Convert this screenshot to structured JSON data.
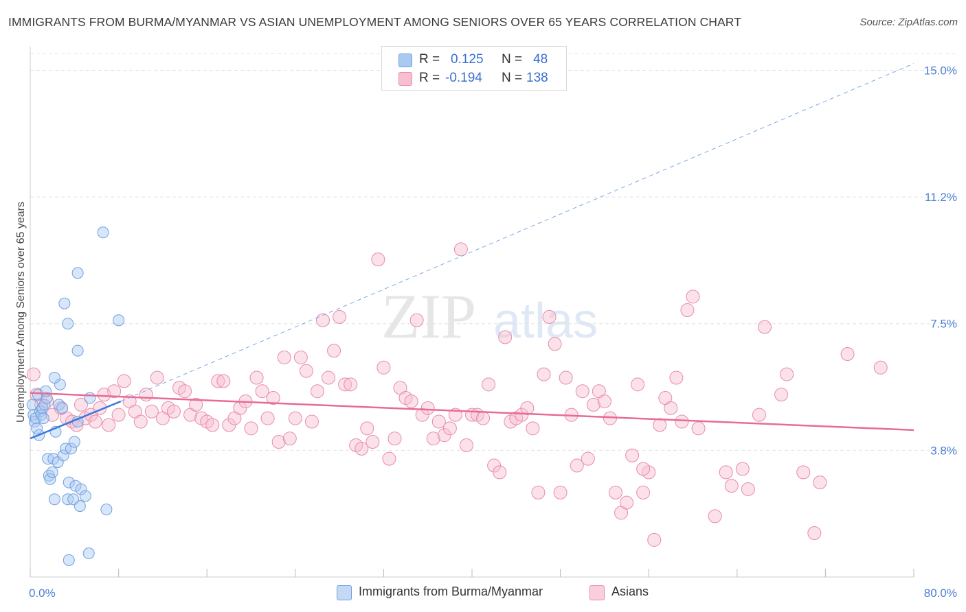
{
  "title": "IMMIGRANTS FROM BURMA/MYANMAR VS ASIAN UNEMPLOYMENT AMONG SENIORS OVER 65 YEARS CORRELATION CHART",
  "source": "Source: ZipAtlas.com",
  "watermark": {
    "zip": "ZIP",
    "atlas": "atlas"
  },
  "legend": {
    "r_label": "R =",
    "n_label": "N =",
    "rows": [
      {
        "r": "0.125",
        "n": "48",
        "color": "#a9c8f2",
        "border": "#6f9fe0"
      },
      {
        "r": "-0.194",
        "n": "138",
        "color": "#f7bfd0",
        "border": "#e98aa8"
      }
    ]
  },
  "bottom_legend": [
    {
      "label": "Immigrants from Burma/Myanmar",
      "color": "#c5d9f5",
      "border": "#6f9fe0"
    },
    {
      "label": "Asians",
      "color": "#f9cfdc",
      "border": "#e98aa8"
    }
  ],
  "chart_data": {
    "type": "scatter",
    "ylabel": "Unemployment Among Seniors over 65 years",
    "xlim": [
      0,
      80
    ],
    "ylim": [
      0,
      15.7
    ],
    "x_tick_labels": [
      {
        "v": 0,
        "label": "0.0%"
      },
      {
        "v": 80,
        "label": "80.0%"
      }
    ],
    "y_tick_labels": [
      {
        "v": 3.75,
        "label": "3.8%"
      },
      {
        "v": 7.5,
        "label": "7.5%"
      },
      {
        "v": 11.25,
        "label": "11.2%"
      },
      {
        "v": 15.0,
        "label": "15.0%"
      }
    ],
    "x_minor_ticks": [
      0,
      8,
      16,
      24,
      32,
      40,
      48,
      56,
      64,
      72,
      80
    ],
    "series": [
      {
        "name": "Immigrants from Burma/Myanmar",
        "color": "#6f9fe0",
        "fill": "rgba(169,200,242,0.45)",
        "points": [
          [
            0.2,
            5.1
          ],
          [
            0.3,
            4.8
          ],
          [
            0.4,
            4.6
          ],
          [
            0.5,
            4.7
          ],
          [
            0.6,
            4.4
          ],
          [
            0.7,
            5.4
          ],
          [
            0.8,
            4.2
          ],
          [
            0.9,
            4.9
          ],
          [
            1.0,
            4.8
          ],
          [
            1.1,
            5.0
          ],
          [
            1.3,
            5.1
          ],
          [
            1.5,
            5.3
          ],
          [
            1.2,
            4.7
          ],
          [
            1.4,
            5.5
          ],
          [
            1.6,
            3.5
          ],
          [
            1.7,
            3.0
          ],
          [
            1.8,
            2.9
          ],
          [
            2.0,
            3.1
          ],
          [
            2.1,
            3.5
          ],
          [
            2.2,
            2.3
          ],
          [
            2.3,
            4.3
          ],
          [
            2.5,
            3.4
          ],
          [
            2.6,
            5.1
          ],
          [
            2.7,
            5.7
          ],
          [
            2.9,
            5.0
          ],
          [
            2.2,
            5.9
          ],
          [
            3.0,
            3.6
          ],
          [
            3.2,
            3.8
          ],
          [
            3.4,
            2.3
          ],
          [
            3.5,
            2.8
          ],
          [
            3.7,
            3.8
          ],
          [
            3.9,
            2.3
          ],
          [
            4.0,
            4.0
          ],
          [
            4.1,
            2.7
          ],
          [
            4.3,
            4.6
          ],
          [
            4.5,
            2.1
          ],
          [
            4.6,
            2.6
          ],
          [
            5.0,
            2.4
          ],
          [
            5.3,
            0.7
          ],
          [
            4.3,
            9.0
          ],
          [
            3.1,
            8.1
          ],
          [
            3.4,
            7.5
          ],
          [
            3.5,
            0.5
          ],
          [
            4.3,
            6.7
          ],
          [
            5.4,
            5.3
          ],
          [
            6.6,
            10.2
          ],
          [
            6.9,
            2.0
          ],
          [
            8.0,
            7.6
          ]
        ],
        "trend": {
          "x": [
            0,
            8.2
          ],
          "y": [
            4.1,
            5.2
          ],
          "extension_x": [
            8.2,
            80
          ],
          "extension_y": [
            5.2,
            15.2
          ]
        }
      },
      {
        "name": "Asians",
        "color": "#e98aa8",
        "fill": "rgba(247,191,208,0.45)",
        "points": [
          [
            0.3,
            6.0
          ],
          [
            0.6,
            5.4
          ],
          [
            1.0,
            5.1
          ],
          [
            1.5,
            5.2
          ],
          [
            2.0,
            4.8
          ],
          [
            2.8,
            5.0
          ],
          [
            3.3,
            4.7
          ],
          [
            3.8,
            4.6
          ],
          [
            4.2,
            4.5
          ],
          [
            4.6,
            5.1
          ],
          [
            5.0,
            4.7
          ],
          [
            5.5,
            4.8
          ],
          [
            5.9,
            4.6
          ],
          [
            6.3,
            5.0
          ],
          [
            6.7,
            5.4
          ],
          [
            7.1,
            4.5
          ],
          [
            7.6,
            5.5
          ],
          [
            8.0,
            4.8
          ],
          [
            8.5,
            5.8
          ],
          [
            9.0,
            5.2
          ],
          [
            9.5,
            4.9
          ],
          [
            10.0,
            4.6
          ],
          [
            10.5,
            5.4
          ],
          [
            11.0,
            4.9
          ],
          [
            11.5,
            5.9
          ],
          [
            12.0,
            4.7
          ],
          [
            12.5,
            5.0
          ],
          [
            13.0,
            4.9
          ],
          [
            13.5,
            5.6
          ],
          [
            14.0,
            5.5
          ],
          [
            14.5,
            4.8
          ],
          [
            15.0,
            5.1
          ],
          [
            15.5,
            4.7
          ],
          [
            16.0,
            4.6
          ],
          [
            16.5,
            4.5
          ],
          [
            17.0,
            5.8
          ],
          [
            17.5,
            5.8
          ],
          [
            18.0,
            4.5
          ],
          [
            18.5,
            4.7
          ],
          [
            19.0,
            5.0
          ],
          [
            19.5,
            5.2
          ],
          [
            20.0,
            4.4
          ],
          [
            20.5,
            5.9
          ],
          [
            21.0,
            5.5
          ],
          [
            21.5,
            4.7
          ],
          [
            22.0,
            5.3
          ],
          [
            22.5,
            4.0
          ],
          [
            23.0,
            6.5
          ],
          [
            23.5,
            4.1
          ],
          [
            24.0,
            4.7
          ],
          [
            24.5,
            6.5
          ],
          [
            25.0,
            6.1
          ],
          [
            25.5,
            4.6
          ],
          [
            26.0,
            5.5
          ],
          [
            26.5,
            7.6
          ],
          [
            27.0,
            5.9
          ],
          [
            27.5,
            6.7
          ],
          [
            28.0,
            7.7
          ],
          [
            28.5,
            5.7
          ],
          [
            29.0,
            5.7
          ],
          [
            29.5,
            3.9
          ],
          [
            30.0,
            3.8
          ],
          [
            30.5,
            4.4
          ],
          [
            31.0,
            4.0
          ],
          [
            31.5,
            9.4
          ],
          [
            32.0,
            6.2
          ],
          [
            32.5,
            3.5
          ],
          [
            33.0,
            4.1
          ],
          [
            33.5,
            5.6
          ],
          [
            34.0,
            5.3
          ],
          [
            34.5,
            5.2
          ],
          [
            35.0,
            7.6
          ],
          [
            35.5,
            4.8
          ],
          [
            36.0,
            5.0
          ],
          [
            36.5,
            4.1
          ],
          [
            37.0,
            4.6
          ],
          [
            37.5,
            4.2
          ],
          [
            38.0,
            4.4
          ],
          [
            38.5,
            4.8
          ],
          [
            39.0,
            9.7
          ],
          [
            39.5,
            3.9
          ],
          [
            40.0,
            4.8
          ],
          [
            40.5,
            4.8
          ],
          [
            41.0,
            4.7
          ],
          [
            41.5,
            5.7
          ],
          [
            42.0,
            3.3
          ],
          [
            42.5,
            3.1
          ],
          [
            43.0,
            7.1
          ],
          [
            43.5,
            4.6
          ],
          [
            44.0,
            4.7
          ],
          [
            44.5,
            4.8
          ],
          [
            45.0,
            5.0
          ],
          [
            45.5,
            4.4
          ],
          [
            46.0,
            2.5
          ],
          [
            46.5,
            6.0
          ],
          [
            47.0,
            7.7
          ],
          [
            47.5,
            6.9
          ],
          [
            48.0,
            2.5
          ],
          [
            48.5,
            5.9
          ],
          [
            49.0,
            4.8
          ],
          [
            49.5,
            3.3
          ],
          [
            50.0,
            5.5
          ],
          [
            50.5,
            3.5
          ],
          [
            51.0,
            5.1
          ],
          [
            51.5,
            5.5
          ],
          [
            52.0,
            5.2
          ],
          [
            52.5,
            4.7
          ],
          [
            53.0,
            2.5
          ],
          [
            53.5,
            1.9
          ],
          [
            54.0,
            2.2
          ],
          [
            54.5,
            3.6
          ],
          [
            55.0,
            5.7
          ],
          [
            55.5,
            2.5
          ],
          [
            56.0,
            3.1
          ],
          [
            56.5,
            1.1
          ],
          [
            57.0,
            4.5
          ],
          [
            57.5,
            5.3
          ],
          [
            58.0,
            5.0
          ],
          [
            58.5,
            5.9
          ],
          [
            59.0,
            4.6
          ],
          [
            59.5,
            7.9
          ],
          [
            60.0,
            8.3
          ],
          [
            60.5,
            4.4
          ],
          [
            62.0,
            1.8
          ],
          [
            63.0,
            3.1
          ],
          [
            63.5,
            2.7
          ],
          [
            64.5,
            3.2
          ],
          [
            65.0,
            2.6
          ],
          [
            66.0,
            4.8
          ],
          [
            66.5,
            7.4
          ],
          [
            68.0,
            5.4
          ],
          [
            68.5,
            6.0
          ],
          [
            70.0,
            3.1
          ],
          [
            71.0,
            1.3
          ],
          [
            71.5,
            2.8
          ],
          [
            74.0,
            6.6
          ],
          [
            77.0,
            6.2
          ],
          [
            55.5,
            3.2
          ]
        ],
        "trend": {
          "x": [
            0,
            80
          ],
          "y": [
            5.45,
            4.35
          ]
        }
      }
    ]
  }
}
